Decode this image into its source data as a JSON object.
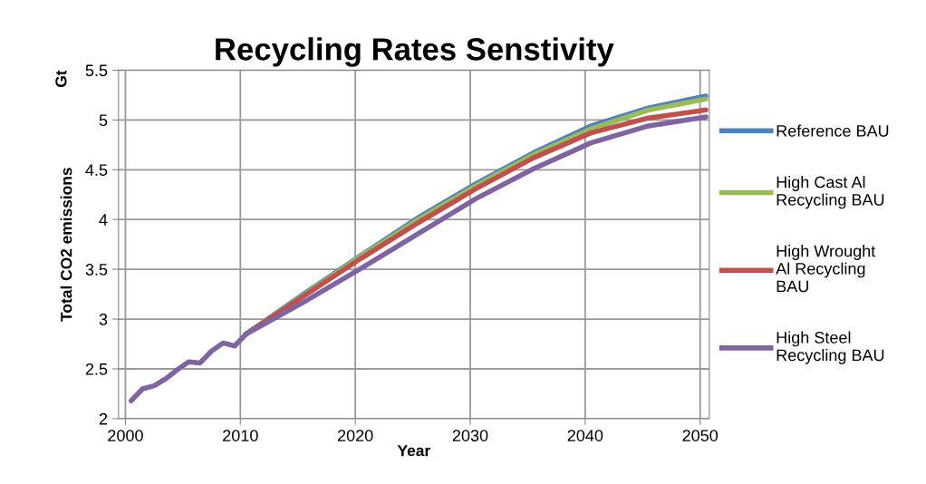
{
  "chart_data": {
    "type": "line",
    "title": "Recycling Rates Senstivity",
    "xlabel": "Year",
    "ylabel": "Total CO2 emissions",
    "annotations": [
      {
        "text": "Gt"
      }
    ],
    "xlim": [
      1999.4,
      2050.8
    ],
    "xticks": [
      2000,
      2010,
      2020,
      2030,
      2040,
      2050
    ],
    "ylim": [
      2,
      5.5
    ],
    "yticks": [
      2,
      2.5,
      3,
      3.5,
      4,
      4.5,
      5,
      5.5
    ],
    "grid": true,
    "legend": "right",
    "marker": "none",
    "line_style": "solid",
    "x": [
      2000.5,
      2001.5,
      2002.5,
      2003.5,
      2004.5,
      2005.5,
      2006.5,
      2007.5,
      2008.5,
      2009.5,
      2010.5,
      2015.5,
      2020.5,
      2025.5,
      2030.5,
      2035.5,
      2040.5,
      2045.5,
      2050.5
    ],
    "series": [
      {
        "name": "Reference BAU",
        "color": "#4f81bd",
        "values": [
          null,
          null,
          null,
          null,
          null,
          null,
          null,
          null,
          null,
          null,
          2.85,
          3.25,
          3.64,
          4.02,
          4.36,
          4.67,
          4.94,
          5.12,
          5.24
        ]
      },
      {
        "name": "High Cast Al Recycling BAU",
        "color": "#9bbb59",
        "values": [
          null,
          null,
          null,
          null,
          null,
          null,
          null,
          null,
          null,
          null,
          2.85,
          3.24,
          3.63,
          4.0,
          4.34,
          4.65,
          4.91,
          5.1,
          5.21
        ]
      },
      {
        "name": "High Wrought Al Recycling BAU",
        "color": "#c0504d",
        "values": [
          null,
          null,
          null,
          null,
          null,
          null,
          null,
          null,
          null,
          null,
          2.85,
          3.23,
          3.61,
          3.97,
          4.31,
          4.62,
          4.87,
          5.02,
          5.1
        ]
      },
      {
        "name": "High Steel Recycling BAU",
        "color": "#8064a2",
        "values": [
          2.18,
          2.3,
          2.33,
          2.4,
          2.49,
          2.57,
          2.56,
          2.68,
          2.76,
          2.73,
          2.85,
          3.17,
          3.51,
          3.86,
          4.21,
          4.51,
          4.77,
          4.94,
          5.03
        ]
      }
    ]
  }
}
